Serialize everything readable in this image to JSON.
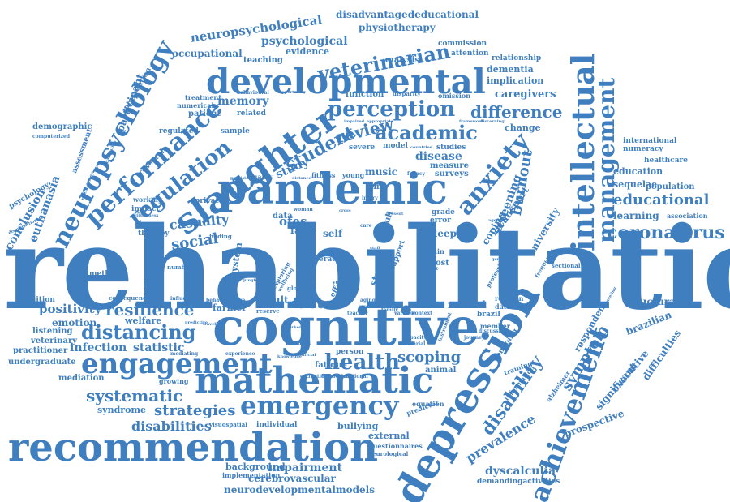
{
  "word_cloud": {
    "color": "#3f7fbf",
    "words": [
      {
        "text": "rehabilitation",
        "weight": 100
      },
      {
        "text": "cognitive",
        "weight": 62
      },
      {
        "text": "pandemic",
        "weight": 50
      },
      {
        "text": "depression",
        "weight": 50
      },
      {
        "text": "recommendation",
        "weight": 48
      },
      {
        "text": "mathematic",
        "weight": 42
      },
      {
        "text": "slaughter",
        "weight": 42
      },
      {
        "text": "developmental",
        "weight": 42
      },
      {
        "text": "intellectual",
        "weight": 38
      },
      {
        "text": "achievement",
        "weight": 34
      },
      {
        "text": "engagement",
        "weight": 34
      },
      {
        "text": "emergency",
        "weight": 30
      },
      {
        "text": "anxiety",
        "weight": 30
      },
      {
        "text": "performance",
        "weight": 30
      },
      {
        "text": "neuropsychology",
        "weight": 30
      },
      {
        "text": "management",
        "weight": 28
      },
      {
        "text": "regulation",
        "weight": 26
      },
      {
        "text": "perception",
        "weight": 26
      },
      {
        "text": "veterinarian",
        "weight": 24
      },
      {
        "text": "academic",
        "weight": 24
      },
      {
        "text": "health",
        "weight": 24
      },
      {
        "text": "coronavirus",
        "weight": 22
      },
      {
        "text": "disability",
        "weight": 22
      },
      {
        "text": "student",
        "weight": 22
      },
      {
        "text": "distancing",
        "weight": 22
      },
      {
        "text": "resilience",
        "weight": 20
      },
      {
        "text": "systematic",
        "weight": 20
      },
      {
        "text": "difference",
        "weight": 20
      },
      {
        "text": "review",
        "weight": 20
      },
      {
        "text": "educational",
        "weight": 18
      },
      {
        "text": "symptom",
        "weight": 18
      },
      {
        "text": "burnout",
        "weight": 18
      },
      {
        "text": "strategies",
        "weight": 18
      },
      {
        "text": "scoping",
        "weight": 18
      },
      {
        "text": "factor",
        "weight": 18
      },
      {
        "text": "social",
        "weight": 18
      },
      {
        "text": "positivity",
        "weight": 16
      },
      {
        "text": "casualty",
        "weight": 16
      },
      {
        "text": "disabilities",
        "weight": 16
      },
      {
        "text": "prevalence",
        "weight": 16
      },
      {
        "text": "impairment",
        "weight": 14
      },
      {
        "text": "neuropsychological",
        "weight": 14
      },
      {
        "text": "psychological",
        "weight": 14
      },
      {
        "text": "memory",
        "weight": 14
      },
      {
        "text": "screening",
        "weight": 14
      },
      {
        "text": "disease",
        "weight": 14
      },
      {
        "text": "study",
        "weight": 14
      },
      {
        "text": "dyscalculia",
        "weight": 14
      },
      {
        "text": "conclusion",
        "weight": 14
      },
      {
        "text": "euthanasia",
        "weight": 14
      },
      {
        "text": "infection",
        "weight": 14
      },
      {
        "text": "statistic",
        "weight": 14
      },
      {
        "text": "neurodevelopmentalmodels",
        "weight": 12
      },
      {
        "text": "cerebrovascular",
        "weight": 12
      },
      {
        "text": "caregivers",
        "weight": 12
      },
      {
        "text": "mental",
        "weight": 12
      },
      {
        "text": "cattle",
        "weight": 12
      },
      {
        "text": "music",
        "weight": 12
      },
      {
        "text": "farm",
        "weight": 12
      },
      {
        "text": "result",
        "weight": 12
      },
      {
        "text": "learning",
        "weight": 12
      },
      {
        "text": "sleep",
        "weight": 12
      },
      {
        "text": "stroke",
        "weight": 12
      },
      {
        "text": "executive",
        "weight": 12
      },
      {
        "text": "difficulties",
        "weight": 12
      },
      {
        "text": "significant",
        "weight": 12
      },
      {
        "text": "structural",
        "weight": 12
      },
      {
        "text": "brazilian",
        "weight": 12
      },
      {
        "text": "syndrome",
        "weight": 12
      },
      {
        "text": "occupational",
        "weight": 12
      },
      {
        "text": "emotion",
        "weight": 12
      },
      {
        "text": "disadvantagededucational",
        "weight": 12
      },
      {
        "text": "physiotherapy",
        "weight": 12
      },
      {
        "text": "participant",
        "weight": 12
      },
      {
        "text": "university",
        "weight": 12
      },
      {
        "text": "coping",
        "weight": 12
      },
      {
        "text": "transport",
        "weight": 12
      },
      {
        "text": "respondent",
        "weight": 12
      },
      {
        "text": "prospective",
        "weight": 12
      },
      {
        "text": "background",
        "weight": 10
      },
      {
        "text": "education",
        "weight": 10
      },
      {
        "text": "population",
        "weight": 10
      },
      {
        "text": "sequelae",
        "weight": 10
      },
      {
        "text": "evidence",
        "weight": 10
      },
      {
        "text": "welfare",
        "weight": 10
      },
      {
        "text": "practitioner",
        "weight": 10
      },
      {
        "text": "teaching",
        "weight": 10
      },
      {
        "text": "listening",
        "weight": 10
      },
      {
        "text": "veterinary",
        "weight": 10
      },
      {
        "text": "undergraduate",
        "weight": 10
      },
      {
        "text": "mediation",
        "weight": 10
      },
      {
        "text": "farmer",
        "weight": 10
      },
      {
        "text": "system",
        "weight": 10
      },
      {
        "text": "bullying",
        "weight": 10
      },
      {
        "text": "external",
        "weight": 10
      },
      {
        "text": "implication",
        "weight": 10
      },
      {
        "text": "dementia",
        "weight": 10
      },
      {
        "text": "relationship",
        "weight": 8
      },
      {
        "text": "commission",
        "weight": 8
      },
      {
        "text": "attention",
        "weight": 8
      },
      {
        "text": "analysis",
        "weight": 8
      },
      {
        "text": "function",
        "weight": 8
      },
      {
        "text": "change",
        "weight": 8
      },
      {
        "text": "therapy",
        "weight": 8
      },
      {
        "text": "patient",
        "weight": 8
      },
      {
        "text": "related",
        "weight": 8
      },
      {
        "text": "sample",
        "weight": 8
      },
      {
        "text": "surveys",
        "weight": 8
      },
      {
        "text": "measure",
        "weight": 8
      },
      {
        "text": "regulated",
        "weight": 8
      },
      {
        "text": "demographic",
        "weight": 8
      },
      {
        "text": "psychology",
        "weight": 8
      },
      {
        "text": "assessment",
        "weight": 8
      },
      {
        "text": "research",
        "weight": 8
      },
      {
        "text": "intervention",
        "weight": 8
      },
      {
        "text": "treatment",
        "weight": 8
      },
      {
        "text": "numerical",
        "weight": 8
      },
      {
        "text": "working",
        "weight": 8
      },
      {
        "text": "impact",
        "weight": 8
      },
      {
        "text": "private",
        "weight": 8
      },
      {
        "text": "quality",
        "weight": 8
      },
      {
        "text": "fitness",
        "weight": 8
      },
      {
        "text": "healthcare",
        "weight": 8
      },
      {
        "text": "international",
        "weight": 8
      },
      {
        "text": "numeracy",
        "weight": 8
      },
      {
        "text": "association",
        "weight": 8
      },
      {
        "text": "brazil",
        "weight": 8
      },
      {
        "text": "relation",
        "weight": 8
      },
      {
        "text": "database",
        "weight": 8
      },
      {
        "text": "member",
        "weight": 8
      },
      {
        "text": "training",
        "weight": 8
      },
      {
        "text": "ongoing",
        "weight": 8
      },
      {
        "text": "information",
        "weight": 8
      },
      {
        "text": "alzheimer",
        "weight": 8
      },
      {
        "text": "demandingactivities",
        "weight": 8
      },
      {
        "text": "implementation",
        "weight": 8
      },
      {
        "text": "individual",
        "weight": 8
      },
      {
        "text": "equation",
        "weight": 8
      },
      {
        "text": "predictor",
        "weight": 8
      },
      {
        "text": "questionnaires",
        "weight": 8
      },
      {
        "text": "neurological",
        "weight": 8
      },
      {
        "text": "animal",
        "weight": 8
      },
      {
        "text": "fatigue",
        "weight": 8
      },
      {
        "text": "person",
        "weight": 8
      },
      {
        "text": "human",
        "weight": 8
      },
      {
        "text": "growing",
        "weight": 8
      },
      {
        "text": "visuospatial",
        "weight": 8
      },
      {
        "text": "cognition",
        "weight": 8
      },
      {
        "text": "consequence",
        "weight": 8
      },
      {
        "text": "method",
        "weight": 8
      },
      {
        "text": "finding",
        "weight": 8
      },
      {
        "text": "number",
        "weight": 8
      },
      {
        "text": "global",
        "weight": 8
      },
      {
        "text": "literacy",
        "weight": 8
      },
      {
        "text": "support",
        "weight": 8
      },
      {
        "text": "adult",
        "weight": 8
      },
      {
        "text": "error",
        "weight": 8
      },
      {
        "text": "grade",
        "weight": 8
      },
      {
        "text": "brain",
        "weight": 8
      },
      {
        "text": "post",
        "weight": 8
      },
      {
        "text": "self",
        "weight": 8
      },
      {
        "text": "data",
        "weight": 8
      },
      {
        "text": "time",
        "weight": 8
      },
      {
        "text": "omission",
        "weight": 8
      },
      {
        "text": "model",
        "weight": 8
      },
      {
        "text": "severe",
        "weight": 8
      },
      {
        "text": "studies",
        "weight": 8
      },
      {
        "text": "young",
        "weight": 8
      },
      {
        "text": "sectional",
        "weight": 6
      },
      {
        "text": "professional",
        "weight": 6
      },
      {
        "text": "frequency",
        "weight": 6
      },
      {
        "text": "article",
        "weight": 6
      },
      {
        "text": "family",
        "weight": 6
      },
      {
        "text": "instrument",
        "weight": 6
      },
      {
        "text": "journey",
        "weight": 6
      },
      {
        "text": "discussion",
        "weight": 6
      },
      {
        "text": "capacity",
        "weight": 6
      },
      {
        "text": "material",
        "weight": 6
      },
      {
        "text": "extraction",
        "weight": 6
      },
      {
        "text": "theoretical",
        "weight": 6
      },
      {
        "text": "emotional",
        "weight": 6
      },
      {
        "text": "experience",
        "weight": 6
      },
      {
        "text": "mediating",
        "weight": 6
      },
      {
        "text": "positive",
        "weight": 6
      },
      {
        "text": "behavioral",
        "weight": 6
      },
      {
        "text": "reserve",
        "weight": 6
      },
      {
        "text": "teacher",
        "weight": 6
      },
      {
        "text": "variable",
        "weight": 6
      },
      {
        "text": "context",
        "weight": 6
      },
      {
        "text": "aging",
        "weight": 6
      },
      {
        "text": "secondary",
        "weight": 6
      },
      {
        "text": "woman",
        "weight": 6
      },
      {
        "text": "care",
        "weight": 6
      },
      {
        "text": "cross",
        "weight": 6
      },
      {
        "text": "injury",
        "weight": 6
      },
      {
        "text": "present",
        "weight": 6
      },
      {
        "text": "fallacy",
        "weight": 6
      },
      {
        "text": "countries",
        "weight": 6
      },
      {
        "text": "appropriate",
        "weight": 6
      },
      {
        "text": "disparity",
        "weight": 6
      },
      {
        "text": "impaired",
        "weight": 6
      },
      {
        "text": "framework",
        "weight": 6
      },
      {
        "text": "discerning",
        "weight": 6
      },
      {
        "text": "opportunity",
        "weight": 6
      },
      {
        "text": "behavioural",
        "weight": 6
      },
      {
        "text": "computerized",
        "weight": 6
      },
      {
        "text": "methodology",
        "weight": 6
      },
      {
        "text": "organization",
        "weight": 6
      },
      {
        "text": "willingness",
        "weight": 6
      },
      {
        "text": "predictive",
        "weight": 6
      },
      {
        "text": "confinement",
        "weight": 6
      },
      {
        "text": "influence",
        "weight": 6
      },
      {
        "text": "disproportionate",
        "weight": 6
      },
      {
        "text": "exploring",
        "weight": 6
      },
      {
        "text": "wellbeing",
        "weight": 6
      },
      {
        "text": "effect",
        "weight": 6
      },
      {
        "text": "year",
        "weight": 6
      },
      {
        "text": "jungle",
        "weight": 6
      },
      {
        "text": "knowledge",
        "weight": 6
      },
      {
        "text": "official",
        "weight": 6
      },
      {
        "text": "provision",
        "weight": 6
      },
      {
        "text": "distance",
        "weight": 6
      },
      {
        "text": "travelling",
        "weight": 6
      },
      {
        "text": "gender",
        "weight": 6
      },
      {
        "text": "aged",
        "weight": 6
      },
      {
        "text": "counseling",
        "weight": 6
      },
      {
        "text": "worker",
        "weight": 6
      },
      {
        "text": "staff",
        "weight": 6
      },
      {
        "text": "ofes",
        "weight": 16
      }
    ]
  }
}
